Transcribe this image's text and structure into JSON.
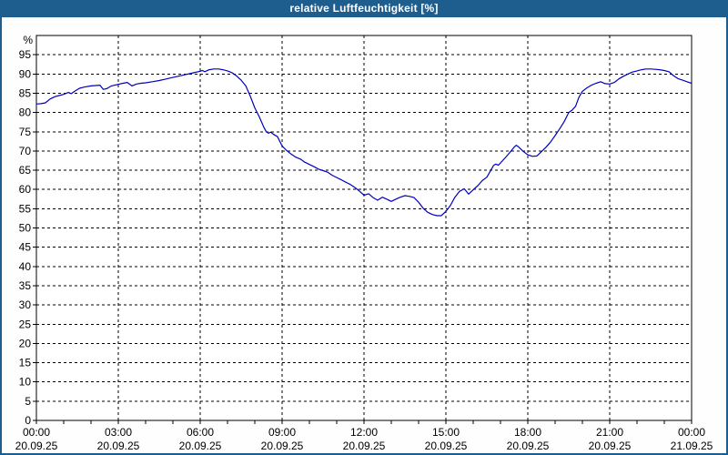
{
  "window": {
    "title": "relative Luftfeuchtigkeit [%]"
  },
  "colors": {
    "titlebar_bg": "#1e5e8e",
    "window_border": "#1e5e8e",
    "page_background": "#fdfefd",
    "plot_background": "#ffffff",
    "grid": "#000000",
    "axis_text": "#000000",
    "line": "#0000c0"
  },
  "chart_data": {
    "type": "line",
    "title": "relative Luftfeuchtigkeit [%]",
    "ylabel": "%",
    "xlabel": "",
    "ylim": [
      0,
      100
    ],
    "grid": "dashed",
    "legend": "none",
    "y_ticks": [
      0,
      5,
      10,
      15,
      20,
      25,
      30,
      35,
      40,
      45,
      50,
      55,
      60,
      65,
      70,
      75,
      80,
      85,
      90,
      95
    ],
    "x_ticks": [
      {
        "hour": 0,
        "time": "00:00",
        "date": "20.09.25"
      },
      {
        "hour": 3,
        "time": "03:00",
        "date": "20.09.25"
      },
      {
        "hour": 6,
        "time": "06:00",
        "date": "20.09.25"
      },
      {
        "hour": 9,
        "time": "09:00",
        "date": "20.09.25"
      },
      {
        "hour": 12,
        "time": "12:00",
        "date": "20.09.25"
      },
      {
        "hour": 15,
        "time": "15:00",
        "date": "20.09.25"
      },
      {
        "hour": 18,
        "time": "18:00",
        "date": "20.09.25"
      },
      {
        "hour": 21,
        "time": "21:00",
        "date": "20.09.25"
      },
      {
        "hour": 24,
        "time": "00:00",
        "date": "21.09.25"
      }
    ],
    "minor_tick_every_hours": 1,
    "x_range_hours": [
      0,
      24
    ],
    "series": [
      {
        "name": "relative Luftfeuchtigkeit [%]",
        "color": "#0000c0",
        "x_hours": [
          0,
          0.17,
          0.33,
          0.5,
          0.67,
          0.83,
          1,
          1.17,
          1.28,
          1.42,
          1.58,
          1.75,
          2,
          2.17,
          2.33,
          2.45,
          2.58,
          2.75,
          3,
          3.17,
          3.33,
          3.5,
          3.67,
          3.83,
          4,
          4.25,
          4.5,
          4.75,
          5,
          5.25,
          5.5,
          5.75,
          6,
          6.08,
          6.17,
          6.33,
          6.5,
          6.67,
          6.83,
          7,
          7.17,
          7.33,
          7.5,
          7.67,
          7.83,
          8,
          8.17,
          8.33,
          8.42,
          8.5,
          8.58,
          8.67,
          8.83,
          9,
          9.17,
          9.33,
          9.5,
          9.67,
          9.83,
          10,
          10.17,
          10.33,
          10.5,
          10.67,
          10.83,
          11,
          11.17,
          11.33,
          11.5,
          11.67,
          11.83,
          12,
          12.17,
          12.33,
          12.5,
          12.67,
          12.83,
          13,
          13.17,
          13.33,
          13.5,
          13.67,
          13.83,
          14,
          14.17,
          14.33,
          14.5,
          14.67,
          14.83,
          15,
          15.17,
          15.33,
          15.5,
          15.67,
          15.83,
          16,
          16.17,
          16.33,
          16.5,
          16.67,
          16.75,
          16.83,
          16.92,
          17,
          17.17,
          17.33,
          17.5,
          17.58,
          17.67,
          17.83,
          18,
          18.17,
          18.33,
          18.5,
          18.67,
          18.83,
          19,
          19.17,
          19.33,
          19.5,
          19.62,
          19.75,
          19.87,
          20,
          20.17,
          20.33,
          20.5,
          20.67,
          20.83,
          21,
          21.17,
          21.33,
          21.5,
          21.67,
          21.83,
          22,
          22.17,
          22.33,
          22.5,
          22.67,
          22.83,
          23,
          23.17,
          23.33,
          23.5,
          23.67,
          23.83,
          24
        ],
        "values": [
          82.2,
          82.3,
          82.5,
          83.5,
          84.1,
          84.4,
          84.7,
          85.2,
          84.9,
          85.6,
          86.3,
          86.6,
          86.9,
          87,
          87.1,
          86,
          86.2,
          86.9,
          87.3,
          87.6,
          87.8,
          86.9,
          87.4,
          87.6,
          87.7,
          88,
          88.3,
          88.7,
          89.1,
          89.5,
          89.9,
          90.3,
          90.7,
          90.9,
          90.6,
          91.1,
          91.3,
          91.3,
          91.1,
          90.8,
          90.3,
          89.5,
          88.4,
          86.9,
          84.3,
          81.2,
          78.8,
          76.2,
          75,
          74.6,
          74.9,
          74.4,
          73.7,
          71.3,
          70.1,
          69.2,
          68.4,
          67.9,
          67.1,
          66.5,
          65.9,
          65.3,
          64.9,
          64.5,
          63.7,
          63.1,
          62.5,
          61.9,
          61.3,
          60.5,
          59.6,
          58.5,
          58.9,
          57.9,
          57.2,
          58,
          57.5,
          56.9,
          57.5,
          58,
          58.4,
          58.2,
          57.9,
          56.7,
          55.1,
          54.1,
          53.5,
          53.2,
          53.2,
          54.3,
          55.9,
          58,
          59.5,
          60.2,
          58.8,
          59.9,
          61,
          62.3,
          63.2,
          65.3,
          66.3,
          66.6,
          66.3,
          66.9,
          68.2,
          69.5,
          71,
          71.5,
          71,
          69.9,
          69,
          68.6,
          68.7,
          69.8,
          71,
          72.3,
          74,
          75.8,
          77.6,
          80,
          80.6,
          81.6,
          83.9,
          85.5,
          86.4,
          87.1,
          87.6,
          88,
          87.5,
          87.4,
          87.8,
          88.7,
          89.4,
          90,
          90.5,
          90.8,
          91.1,
          91.3,
          91.3,
          91.2,
          91.1,
          90.9,
          90.6,
          89.6,
          88.8,
          88.4,
          88,
          87.6
        ]
      }
    ]
  }
}
